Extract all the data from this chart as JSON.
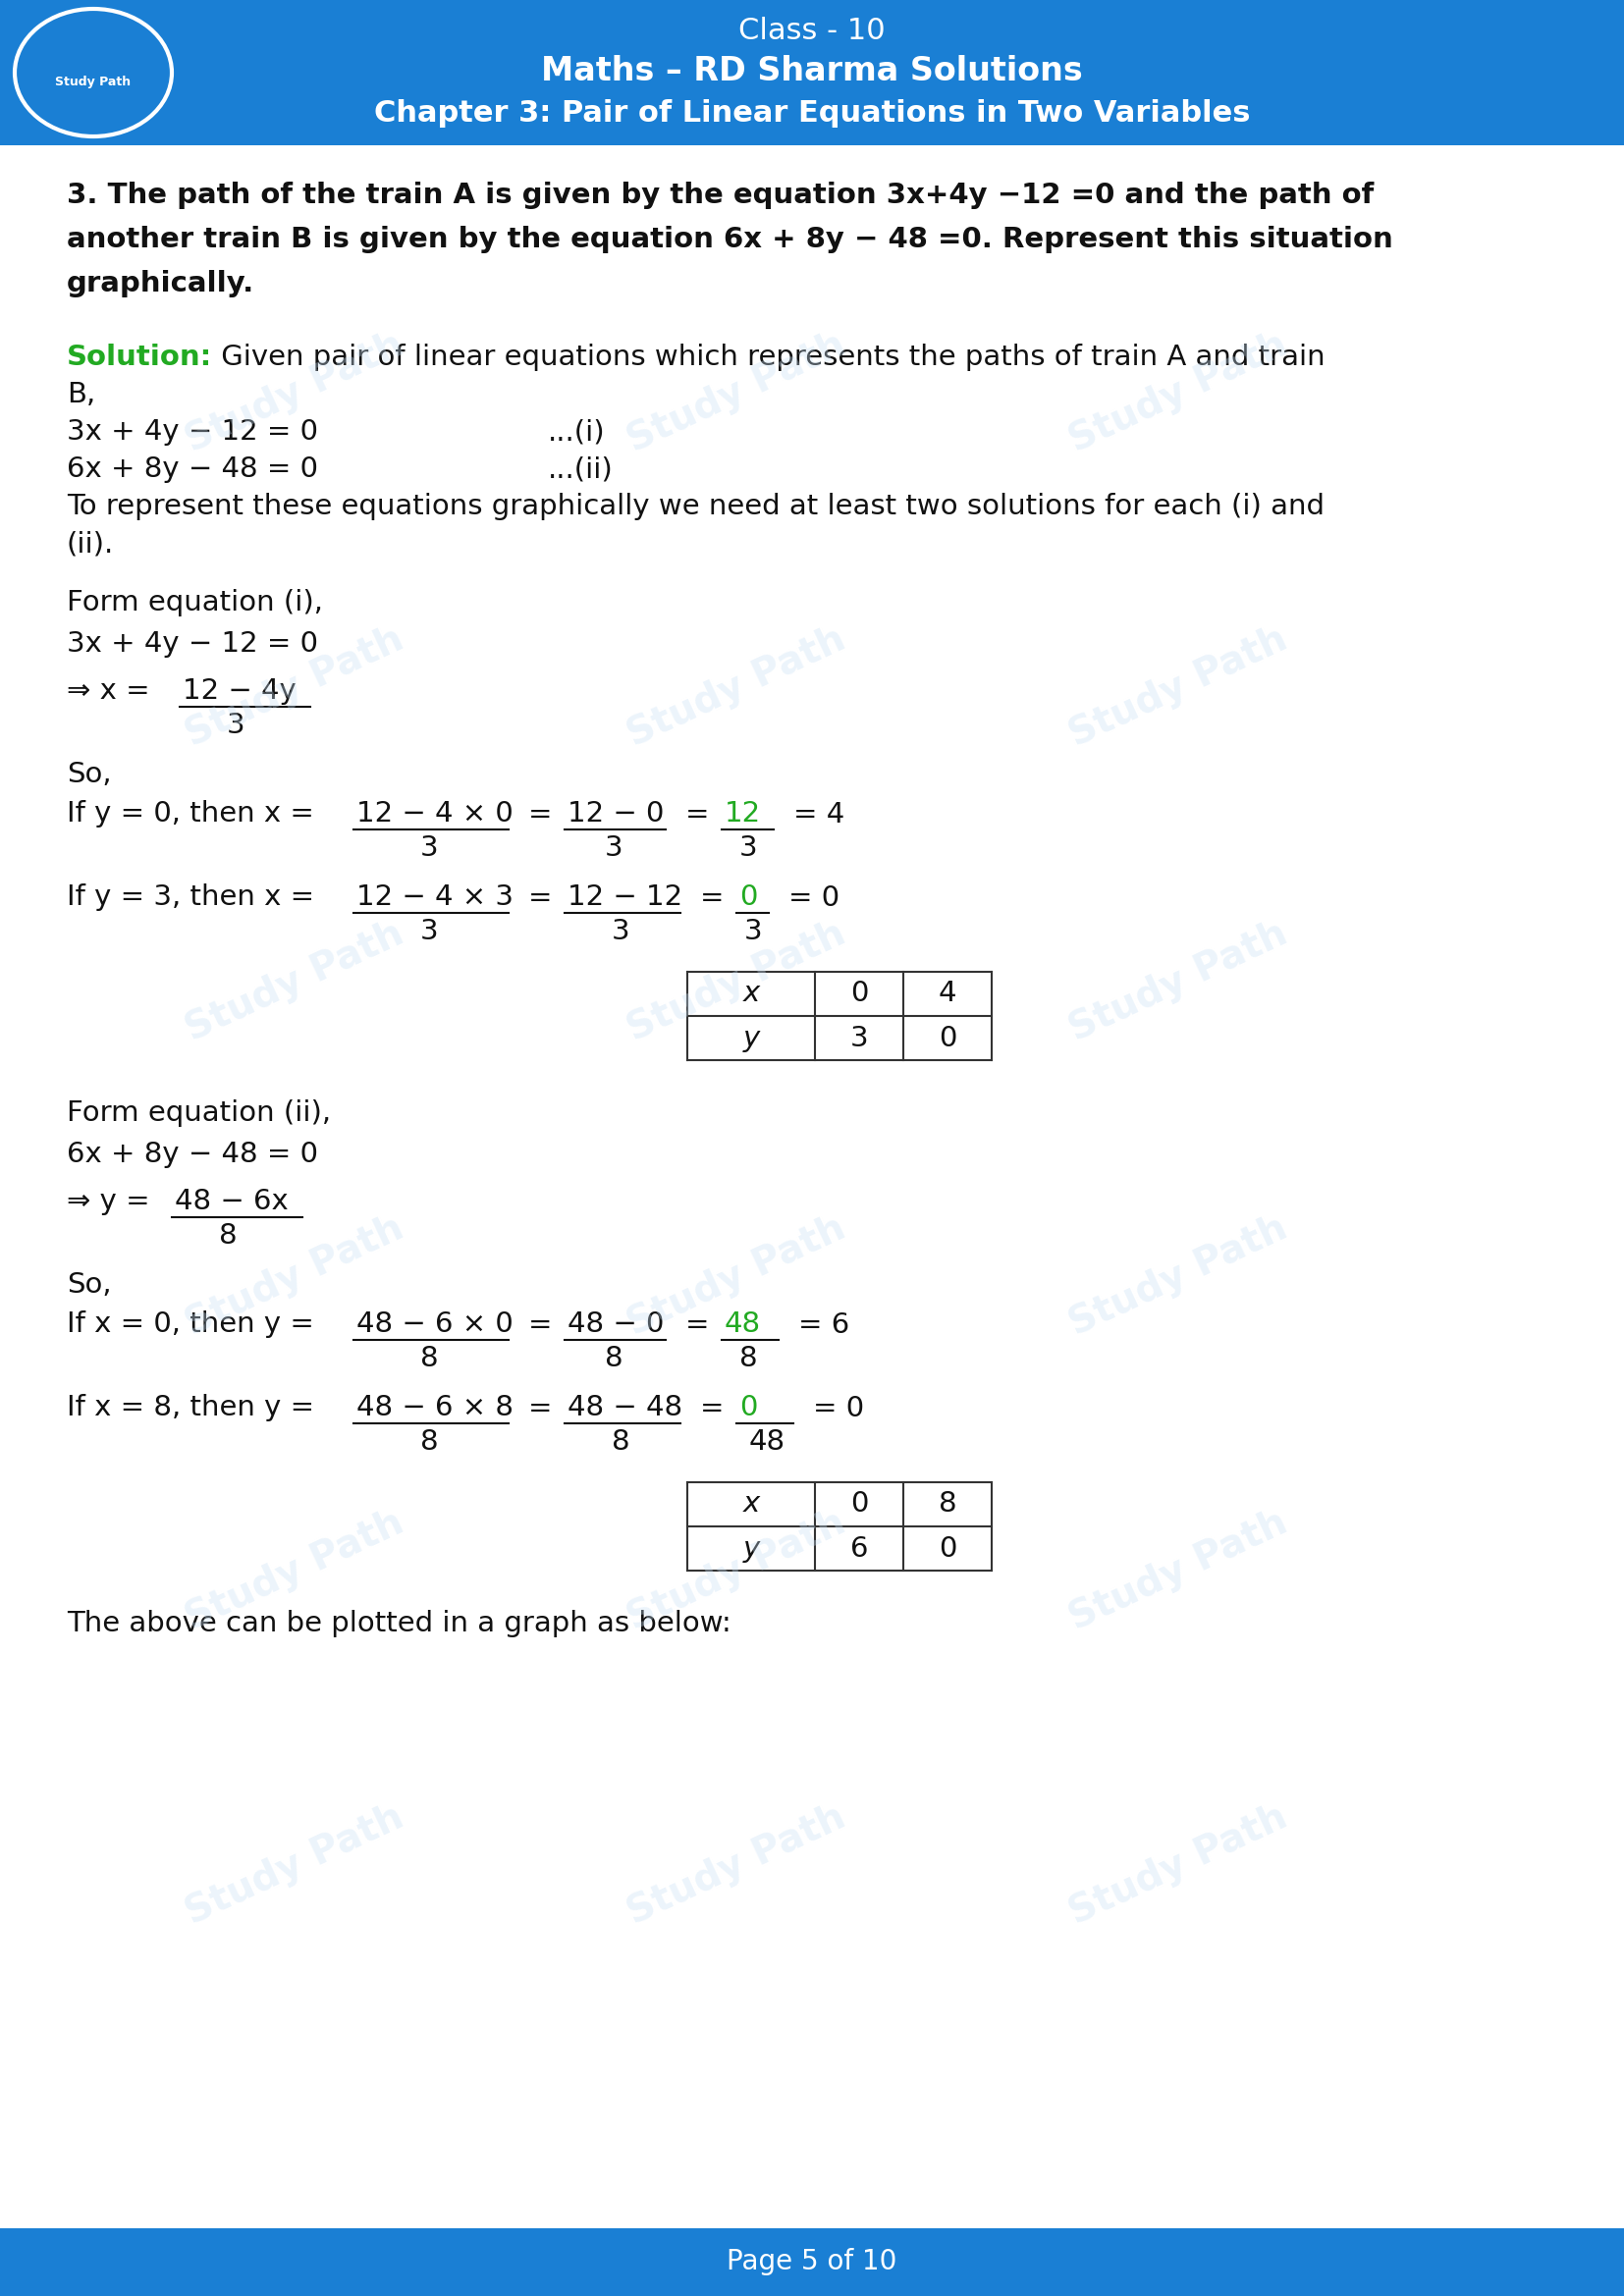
{
  "page_bg": "#ffffff",
  "header_bg": "#1a7fd4",
  "header_line1": "Class - 10",
  "header_line2": "Maths – RD Sharma Solutions",
  "header_line3": "Chapter 3: Pair of Linear Equations in Two Variables",
  "header_text_color": "#ffffff",
  "footer_bg": "#1a7fd4",
  "footer_text": "Page 5 of 10",
  "footer_text_color": "#ffffff",
  "watermark_text": "Study Path",
  "watermark_color": "#c8e0f5",
  "solution_label_color": "#22aa22",
  "body_text_color": "#111111",
  "table1_x_vals": [
    "0",
    "4"
  ],
  "table1_y_vals": [
    "3",
    "0"
  ],
  "table2_x_vals": [
    "0",
    "8"
  ],
  "table2_y_vals": [
    "6",
    "0"
  ],
  "green_color": "#22aa22",
  "blue_color": "#1a7fd4"
}
